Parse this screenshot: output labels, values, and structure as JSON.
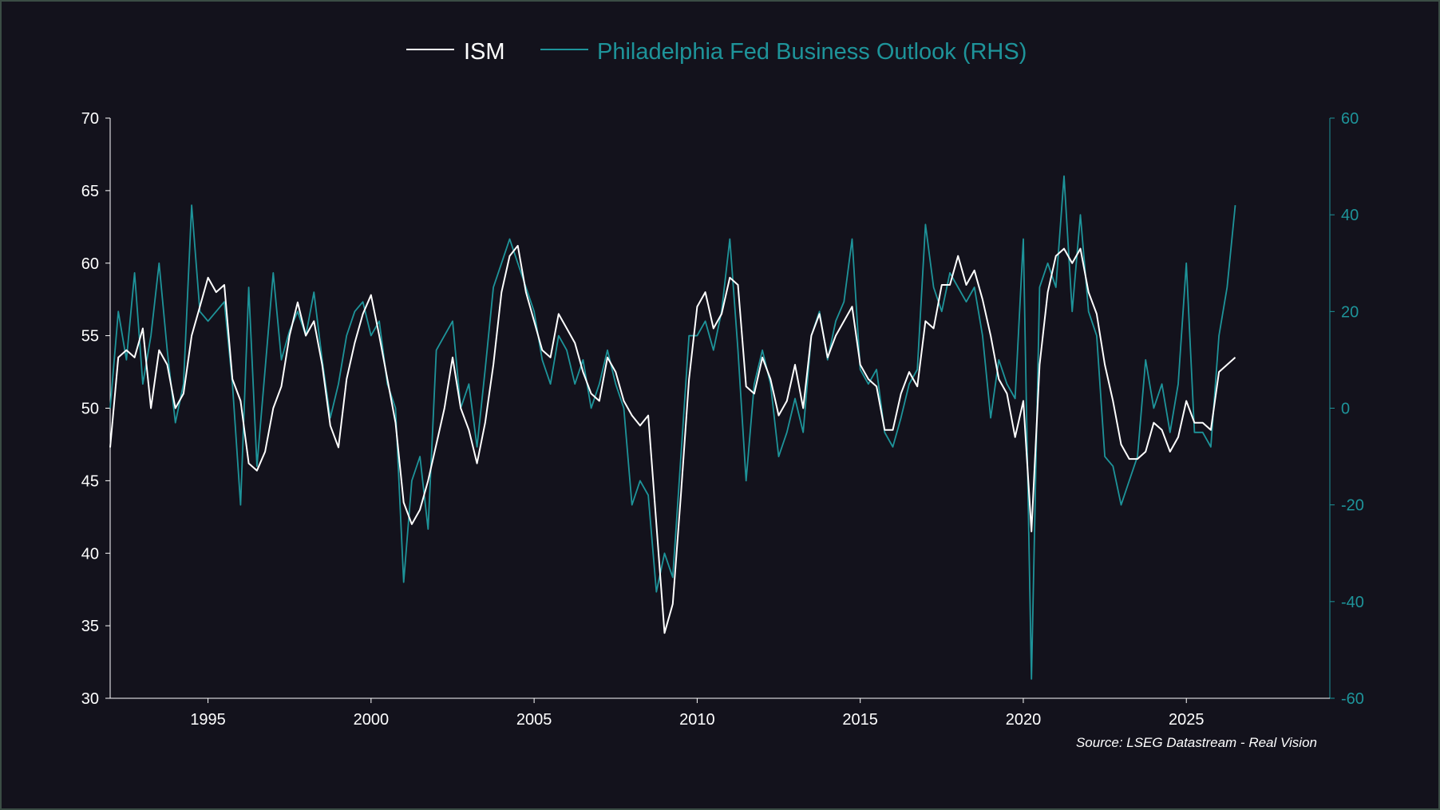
{
  "chart_data": {
    "type": "line",
    "title": "",
    "xlabel": "",
    "ylabel": "",
    "source": "Source: LSEG Datastream - Real Vision",
    "x_range": [
      1992.0,
      2029.4
    ],
    "x_ticks": [
      1995,
      2000,
      2005,
      2010,
      2015,
      2020,
      2025
    ],
    "y_left": {
      "range": [
        30,
        70
      ],
      "ticks": [
        30,
        35,
        40,
        45,
        50,
        55,
        60,
        65,
        70
      ]
    },
    "y_right": {
      "range": [
        -60,
        60
      ],
      "ticks": [
        -60,
        -40,
        -20,
        0,
        20,
        40,
        60
      ]
    },
    "legend_position": "top-center",
    "colors": {
      "background": "#13121c",
      "ism": "#ffffff",
      "philly": "#1e949a",
      "axis_left": "#ffffff",
      "axis_right": "#1e949a"
    },
    "series": [
      {
        "name": "ISM",
        "axis": "left",
        "points": [
          [
            1992.0,
            47.3
          ],
          [
            1992.25,
            53.5
          ],
          [
            1992.5,
            54.0
          ],
          [
            1992.75,
            53.5
          ],
          [
            1993.0,
            55.5
          ],
          [
            1993.25,
            50.0
          ],
          [
            1993.5,
            54.0
          ],
          [
            1993.75,
            53.0
          ],
          [
            1994.0,
            50.0
          ],
          [
            1994.25,
            51.0
          ],
          [
            1994.5,
            55.0
          ],
          [
            1994.75,
            57.0
          ],
          [
            1995.0,
            59.0
          ],
          [
            1995.25,
            58.0
          ],
          [
            1995.5,
            58.5
          ],
          [
            1995.75,
            52.0
          ],
          [
            1996.0,
            50.5
          ],
          [
            1996.25,
            46.2
          ],
          [
            1996.5,
            45.7
          ],
          [
            1996.75,
            47.0
          ],
          [
            1997.0,
            50.0
          ],
          [
            1997.25,
            51.5
          ],
          [
            1997.5,
            55.0
          ],
          [
            1997.75,
            57.3
          ],
          [
            1998.0,
            55.0
          ],
          [
            1998.25,
            56.0
          ],
          [
            1998.5,
            53.0
          ],
          [
            1998.75,
            48.8
          ],
          [
            1999.0,
            47.3
          ],
          [
            1999.25,
            52.0
          ],
          [
            1999.5,
            54.5
          ],
          [
            1999.75,
            56.5
          ],
          [
            2000.0,
            57.8
          ],
          [
            2000.25,
            55.0
          ],
          [
            2000.5,
            52.0
          ],
          [
            2000.75,
            49.0
          ],
          [
            2001.0,
            43.5
          ],
          [
            2001.25,
            42.0
          ],
          [
            2001.5,
            43.0
          ],
          [
            2001.75,
            45.0
          ],
          [
            2002.0,
            47.5
          ],
          [
            2002.25,
            50.0
          ],
          [
            2002.5,
            53.5
          ],
          [
            2002.75,
            50.0
          ],
          [
            2003.0,
            48.5
          ],
          [
            2003.25,
            46.2
          ],
          [
            2003.5,
            49.0
          ],
          [
            2003.75,
            53.0
          ],
          [
            2004.0,
            58.0
          ],
          [
            2004.25,
            60.5
          ],
          [
            2004.5,
            61.2
          ],
          [
            2004.75,
            58.0
          ],
          [
            2005.0,
            56.0
          ],
          [
            2005.25,
            54.0
          ],
          [
            2005.5,
            53.5
          ],
          [
            2005.75,
            56.5
          ],
          [
            2006.0,
            55.5
          ],
          [
            2006.25,
            54.5
          ],
          [
            2006.5,
            52.5
          ],
          [
            2006.75,
            51.0
          ],
          [
            2007.0,
            50.5
          ],
          [
            2007.25,
            53.5
          ],
          [
            2007.5,
            52.5
          ],
          [
            2007.75,
            50.5
          ],
          [
            2008.0,
            49.5
          ],
          [
            2008.25,
            48.8
          ],
          [
            2008.5,
            49.5
          ],
          [
            2008.75,
            42.0
          ],
          [
            2009.0,
            34.5
          ],
          [
            2009.25,
            36.5
          ],
          [
            2009.5,
            44.0
          ],
          [
            2009.75,
            52.0
          ],
          [
            2010.0,
            57.0
          ],
          [
            2010.25,
            58.0
          ],
          [
            2010.5,
            55.5
          ],
          [
            2010.75,
            56.5
          ],
          [
            2011.0,
            59.0
          ],
          [
            2011.25,
            58.5
          ],
          [
            2011.5,
            51.5
          ],
          [
            2011.75,
            51.0
          ],
          [
            2012.0,
            53.5
          ],
          [
            2012.25,
            52.0
          ],
          [
            2012.5,
            49.5
          ],
          [
            2012.75,
            50.5
          ],
          [
            2013.0,
            53.0
          ],
          [
            2013.25,
            50.0
          ],
          [
            2013.5,
            55.0
          ],
          [
            2013.75,
            56.5
          ],
          [
            2014.0,
            53.5
          ],
          [
            2014.25,
            55.0
          ],
          [
            2014.5,
            56.0
          ],
          [
            2014.75,
            57.0
          ],
          [
            2015.0,
            53.0
          ],
          [
            2015.25,
            52.0
          ],
          [
            2015.5,
            51.5
          ],
          [
            2015.75,
            48.5
          ],
          [
            2016.0,
            48.5
          ],
          [
            2016.25,
            51.0
          ],
          [
            2016.5,
            52.5
          ],
          [
            2016.75,
            51.5
          ],
          [
            2017.0,
            56.0
          ],
          [
            2017.25,
            55.5
          ],
          [
            2017.5,
            58.5
          ],
          [
            2017.75,
            58.5
          ],
          [
            2018.0,
            60.5
          ],
          [
            2018.25,
            58.5
          ],
          [
            2018.5,
            59.5
          ],
          [
            2018.75,
            57.5
          ],
          [
            2019.0,
            55.0
          ],
          [
            2019.25,
            52.0
          ],
          [
            2019.5,
            51.0
          ],
          [
            2019.75,
            48.0
          ],
          [
            2020.0,
            50.5
          ],
          [
            2020.25,
            41.5
          ],
          [
            2020.5,
            53.0
          ],
          [
            2020.75,
            58.0
          ],
          [
            2021.0,
            60.5
          ],
          [
            2021.25,
            61.0
          ],
          [
            2021.5,
            60.0
          ],
          [
            2021.75,
            61.0
          ],
          [
            2022.0,
            58.0
          ],
          [
            2022.25,
            56.5
          ],
          [
            2022.5,
            53.0
          ],
          [
            2022.75,
            50.5
          ],
          [
            2023.0,
            47.5
          ],
          [
            2023.25,
            46.5
          ],
          [
            2023.5,
            46.5
          ],
          [
            2023.75,
            47.0
          ],
          [
            2024.0,
            49.0
          ],
          [
            2024.25,
            48.5
          ],
          [
            2024.5,
            47.0
          ],
          [
            2024.75,
            48.0
          ],
          [
            2025.0,
            50.5
          ],
          [
            2025.25,
            49.0
          ],
          [
            2025.5,
            49.0
          ],
          [
            2025.75,
            48.5
          ],
          [
            2026.0,
            52.5
          ],
          [
            2026.25,
            53.0
          ],
          [
            2026.5,
            53.5
          ]
        ]
      },
      {
        "name": "Philadelphia Fed Business Outlook (RHS)",
        "axis": "right",
        "points": [
          [
            1992.0,
            0
          ],
          [
            1992.25,
            20
          ],
          [
            1992.5,
            10
          ],
          [
            1992.75,
            28
          ],
          [
            1993.0,
            5
          ],
          [
            1993.25,
            15
          ],
          [
            1993.5,
            30
          ],
          [
            1993.75,
            12
          ],
          [
            1994.0,
            -3
          ],
          [
            1994.25,
            5
          ],
          [
            1994.5,
            42
          ],
          [
            1994.75,
            20
          ],
          [
            1995.0,
            18
          ],
          [
            1995.25,
            20
          ],
          [
            1995.5,
            22
          ],
          [
            1995.75,
            5
          ],
          [
            1996.0,
            -20
          ],
          [
            1996.25,
            25
          ],
          [
            1996.5,
            -12
          ],
          [
            1996.75,
            8
          ],
          [
            1997.0,
            28
          ],
          [
            1997.25,
            10
          ],
          [
            1997.5,
            16
          ],
          [
            1997.75,
            20
          ],
          [
            1998.0,
            15
          ],
          [
            1998.25,
            24
          ],
          [
            1998.5,
            10
          ],
          [
            1998.75,
            -2
          ],
          [
            1999.0,
            5
          ],
          [
            1999.25,
            15
          ],
          [
            1999.5,
            20
          ],
          [
            1999.75,
            22
          ],
          [
            2000.0,
            15
          ],
          [
            2000.25,
            18
          ],
          [
            2000.5,
            5
          ],
          [
            2000.75,
            0
          ],
          [
            2001.0,
            -36
          ],
          [
            2001.25,
            -15
          ],
          [
            2001.5,
            -10
          ],
          [
            2001.75,
            -25
          ],
          [
            2002.0,
            12
          ],
          [
            2002.25,
            15
          ],
          [
            2002.5,
            18
          ],
          [
            2002.75,
            0
          ],
          [
            2003.0,
            5
          ],
          [
            2003.25,
            -8
          ],
          [
            2003.5,
            8
          ],
          [
            2003.75,
            25
          ],
          [
            2004.0,
            30
          ],
          [
            2004.25,
            35
          ],
          [
            2004.5,
            30
          ],
          [
            2004.75,
            25
          ],
          [
            2005.0,
            20
          ],
          [
            2005.25,
            10
          ],
          [
            2005.5,
            5
          ],
          [
            2005.75,
            15
          ],
          [
            2006.0,
            12
          ],
          [
            2006.25,
            5
          ],
          [
            2006.5,
            10
          ],
          [
            2006.75,
            0
          ],
          [
            2007.0,
            5
          ],
          [
            2007.25,
            12
          ],
          [
            2007.5,
            5
          ],
          [
            2007.75,
            0
          ],
          [
            2008.0,
            -20
          ],
          [
            2008.25,
            -15
          ],
          [
            2008.5,
            -18
          ],
          [
            2008.75,
            -38
          ],
          [
            2009.0,
            -30
          ],
          [
            2009.25,
            -35
          ],
          [
            2009.5,
            -10
          ],
          [
            2009.75,
            15
          ],
          [
            2010.0,
            15
          ],
          [
            2010.25,
            18
          ],
          [
            2010.5,
            12
          ],
          [
            2010.75,
            20
          ],
          [
            2011.0,
            35
          ],
          [
            2011.25,
            12
          ],
          [
            2011.5,
            -15
          ],
          [
            2011.75,
            5
          ],
          [
            2012.0,
            12
          ],
          [
            2012.25,
            5
          ],
          [
            2012.5,
            -10
          ],
          [
            2012.75,
            -5
          ],
          [
            2013.0,
            2
          ],
          [
            2013.25,
            -5
          ],
          [
            2013.5,
            15
          ],
          [
            2013.75,
            20
          ],
          [
            2014.0,
            10
          ],
          [
            2014.25,
            18
          ],
          [
            2014.5,
            22
          ],
          [
            2014.75,
            35
          ],
          [
            2015.0,
            8
          ],
          [
            2015.25,
            5
          ],
          [
            2015.5,
            8
          ],
          [
            2015.75,
            -5
          ],
          [
            2016.0,
            -8
          ],
          [
            2016.25,
            -2
          ],
          [
            2016.5,
            5
          ],
          [
            2016.75,
            8
          ],
          [
            2017.0,
            38
          ],
          [
            2017.25,
            25
          ],
          [
            2017.5,
            20
          ],
          [
            2017.75,
            28
          ],
          [
            2018.0,
            25
          ],
          [
            2018.25,
            22
          ],
          [
            2018.5,
            25
          ],
          [
            2018.75,
            15
          ],
          [
            2019.0,
            -2
          ],
          [
            2019.25,
            10
          ],
          [
            2019.5,
            5
          ],
          [
            2019.75,
            2
          ],
          [
            2020.0,
            35
          ],
          [
            2020.25,
            -56
          ],
          [
            2020.5,
            25
          ],
          [
            2020.75,
            30
          ],
          [
            2021.0,
            25
          ],
          [
            2021.25,
            48
          ],
          [
            2021.5,
            20
          ],
          [
            2021.75,
            40
          ],
          [
            2022.0,
            20
          ],
          [
            2022.25,
            15
          ],
          [
            2022.5,
            -10
          ],
          [
            2022.75,
            -12
          ],
          [
            2023.0,
            -20
          ],
          [
            2023.25,
            -15
          ],
          [
            2023.5,
            -10
          ],
          [
            2023.75,
            10
          ],
          [
            2024.0,
            0
          ],
          [
            2024.25,
            5
          ],
          [
            2024.5,
            -5
          ],
          [
            2024.75,
            5
          ],
          [
            2025.0,
            30
          ],
          [
            2025.25,
            -5
          ],
          [
            2025.5,
            -5
          ],
          [
            2025.75,
            -8
          ],
          [
            2026.0,
            15
          ],
          [
            2026.25,
            25
          ],
          [
            2026.5,
            42
          ]
        ]
      }
    ]
  }
}
